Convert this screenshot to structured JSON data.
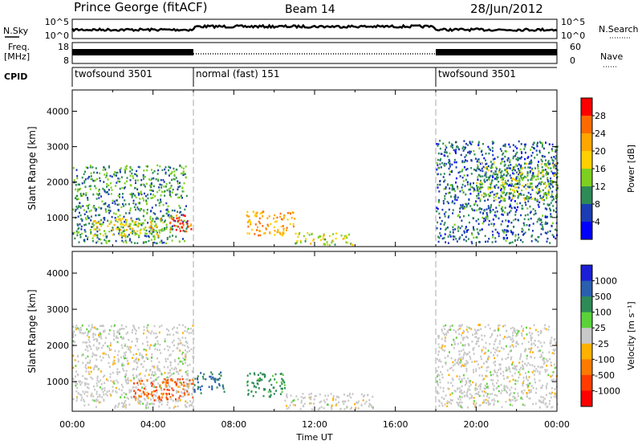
{
  "header": {
    "station": "Prince George (fitACF)",
    "beam": "Beam 14",
    "date": "28/Jun/2012"
  },
  "left_labels": {
    "nsky": "N.Sky",
    "freq": "Freq.",
    "freq_unit": "[MHz]",
    "cpid": "CPID"
  },
  "right_labels": {
    "nsearch": "N.Search",
    "nave": "Nave"
  },
  "strip_axes": {
    "noise_left_ticks": [
      "10^5",
      "10^0"
    ],
    "noise_right_ticks": [
      "10^5",
      "10^0"
    ],
    "freq_left_ticks": [
      "18",
      "8"
    ],
    "nave_right_ticks": [
      "60",
      "0"
    ]
  },
  "cpid_segments": [
    {
      "label": "twofsound 3501",
      "start_h": 0,
      "end_h": 6
    },
    {
      "label": "normal (fast) 151",
      "start_h": 6,
      "end_h": 18
    },
    {
      "label": "twofsound 3501",
      "start_h": 18,
      "end_h": 24
    }
  ],
  "power_colorbar": {
    "label": "Power [dB]",
    "ticks": [
      "28",
      "24",
      "20",
      "16",
      "12",
      "8",
      "4"
    ],
    "colors": [
      "#ff0000",
      "#ff6a00",
      "#ffa500",
      "#ffd000",
      "#7dd020",
      "#2e8b57",
      "#1c3cb4",
      "#0000ff"
    ]
  },
  "velocity_colorbar": {
    "label": "Velocity [m s⁻¹]",
    "ticks": [
      "1000",
      "500",
      "100",
      "25",
      "-25",
      "-100",
      "-500",
      "-1000"
    ],
    "colors": [
      "#1b1fd6",
      "#2a5fb0",
      "#2e8b57",
      "#5cd23a",
      "#c8c8c8",
      "#ffb000",
      "#ff7a00",
      "#ff3c00",
      "#ff0000"
    ]
  },
  "chart_data": [
    {
      "type": "heatmap",
      "name_panel": "power",
      "ylabel": "Slant Range [km]",
      "xlabel": "Time UT",
      "xlim": [
        0,
        24
      ],
      "ylim": [
        180,
        4600
      ],
      "xticks": [
        "00:00",
        "04:00",
        "08:00",
        "12:00",
        "16:00",
        "20:00",
        "00:00"
      ],
      "yticks": [
        1000,
        2000,
        3000,
        4000
      ],
      "value_unit": "dB",
      "regions": [
        {
          "t": [
            0.0,
            5.7
          ],
          "r": [
            300,
            2500
          ],
          "value": 10
        },
        {
          "t": [
            1.0,
            4.5
          ],
          "r": [
            500,
            1000
          ],
          "value": 18
        },
        {
          "t": [
            4.8,
            5.9
          ],
          "r": [
            600,
            1100
          ],
          "value": 28
        },
        {
          "t": [
            8.6,
            11.0
          ],
          "r": [
            500,
            1200
          ],
          "value": 22
        },
        {
          "t": [
            11.0,
            14.0
          ],
          "r": [
            250,
            600
          ],
          "value": 16
        },
        {
          "t": [
            18.0,
            24.0
          ],
          "r": [
            300,
            3200
          ],
          "value": 8
        },
        {
          "t": [
            20.0,
            24.0
          ],
          "r": [
            1500,
            2600
          ],
          "value": 14
        }
      ]
    },
    {
      "type": "heatmap",
      "name_panel": "velocity",
      "ylabel": "Slant Range [km]",
      "xlabel": "Time UT",
      "xlim": [
        0,
        24
      ],
      "ylim": [
        180,
        4600
      ],
      "xticks": [
        "00:00",
        "04:00",
        "08:00",
        "12:00",
        "16:00",
        "20:00",
        "00:00"
      ],
      "yticks": [
        1000,
        2000,
        3000,
        4000
      ],
      "value_unit": "m s-1",
      "regions": [
        {
          "t": [
            0.0,
            6.0
          ],
          "r": [
            300,
            2600
          ],
          "value": 0
        },
        {
          "t": [
            3.0,
            6.0
          ],
          "r": [
            500,
            1100
          ],
          "value": -300
        },
        {
          "t": [
            6.0,
            7.5
          ],
          "r": [
            700,
            1300
          ],
          "value": 300
        },
        {
          "t": [
            8.6,
            10.5
          ],
          "r": [
            600,
            1300
          ],
          "value": 80
        },
        {
          "t": [
            10.5,
            15.0
          ],
          "r": [
            250,
            700
          ],
          "value": 0
        },
        {
          "t": [
            18.0,
            24.0
          ],
          "r": [
            300,
            2600
          ],
          "value": 0
        }
      ]
    }
  ]
}
